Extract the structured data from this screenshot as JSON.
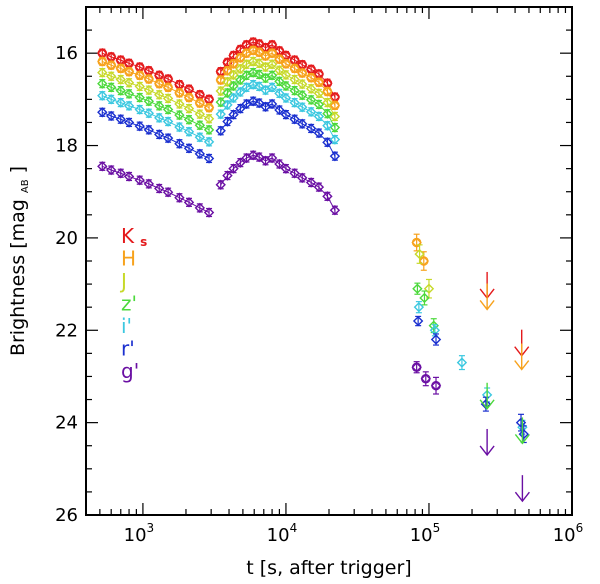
{
  "chart_data": {
    "type": "scatter",
    "title": "",
    "xlabel": "t [s, after trigger]",
    "ylabel_main": "Brightness [mag",
    "ylabel_sub": "AB",
    "ylabel_end": "]",
    "xscale": "log",
    "xlim": [
      400,
      1000000
    ],
    "ylim": [
      26,
      15
    ],
    "x_ticks": [
      {
        "value": 1000,
        "base": "10",
        "exp": "3"
      },
      {
        "value": 10000,
        "base": "10",
        "exp": "4"
      },
      {
        "value": 100000,
        "base": "10",
        "exp": "5"
      },
      {
        "value": 1000000,
        "base": "10",
        "exp": "6"
      }
    ],
    "y_ticks": [
      16,
      18,
      20,
      22,
      24,
      26
    ],
    "legend_position": "middle-left",
    "series": [
      {
        "name": "K",
        "name_sub": "s",
        "color": "#e41a1c",
        "marker": "circle-diamond",
        "offset": 0.0
      },
      {
        "name": "H",
        "name_sub": "",
        "color": "#f7a21c",
        "marker": "circle-diamond",
        "offset": 0.18
      },
      {
        "name": "J",
        "name_sub": "",
        "color": "#c7d92a",
        "marker": "diamond",
        "offset": 0.42
      },
      {
        "name": "z'",
        "name_sub": "",
        "color": "#4cd93c",
        "marker": "diamond",
        "offset": 0.66
      },
      {
        "name": "i'",
        "name_sub": "",
        "color": "#3cc8e0",
        "marker": "diamond",
        "offset": 0.92
      },
      {
        "name": "r'",
        "name_sub": "",
        "color": "#1a2fcf",
        "marker": "diamond",
        "offset": 1.28
      },
      {
        "name": "g'",
        "name_sub": "",
        "color": "#6a0fa3",
        "marker": "diamond",
        "offset": 2.45
      }
    ],
    "early_decay": {
      "t": [
        520,
        600,
        700,
        800,
        950,
        1100,
        1300,
        1500,
        1800,
        2100,
        2500,
        2900
      ],
      "base_mag": [
        16.0,
        16.08,
        16.15,
        16.22,
        16.3,
        16.38,
        16.48,
        16.56,
        16.68,
        16.78,
        16.9,
        17.0
      ]
    },
    "flare": {
      "t": [
        3500,
        3900,
        4300,
        4800,
        5300,
        5900,
        6500,
        7200,
        8000,
        9000,
        10000,
        11500,
        13000,
        15000,
        17000,
        19500,
        22000
      ],
      "base_mag": [
        16.4,
        16.2,
        16.05,
        15.92,
        15.82,
        15.76,
        15.8,
        15.88,
        15.82,
        15.95,
        16.05,
        16.15,
        16.25,
        16.35,
        16.45,
        16.65,
        16.95
      ]
    },
    "late": [
      {
        "band": "H",
        "t": 82000,
        "mag": 20.1,
        "err": 0.18
      },
      {
        "band": "H",
        "t": 92000,
        "mag": 20.5,
        "err": 0.2
      },
      {
        "band": "J",
        "t": 86000,
        "mag": 20.35,
        "err": 0.2
      },
      {
        "band": "J",
        "t": 100000,
        "mag": 21.1,
        "err": 0.2
      },
      {
        "band": "z'",
        "t": 83000,
        "mag": 21.1,
        "err": 0.12
      },
      {
        "band": "z'",
        "t": 93000,
        "mag": 21.3,
        "err": 0.15
      },
      {
        "band": "z'",
        "t": 108000,
        "mag": 21.9,
        "err": 0.15
      },
      {
        "band": "i'",
        "t": 85000,
        "mag": 21.5,
        "err": 0.12
      },
      {
        "band": "i'",
        "t": 110000,
        "mag": 22.0,
        "err": 0.12
      },
      {
        "band": "i'",
        "t": 170000,
        "mag": 22.7,
        "err": 0.15
      },
      {
        "band": "i'",
        "t": 255000,
        "mag": 23.4,
        "err": 0.15
      },
      {
        "band": "i'",
        "t": 450000,
        "mag": 24.1,
        "err": 0.15
      },
      {
        "band": "r'",
        "t": 84000,
        "mag": 21.8,
        "err": 0.1
      },
      {
        "band": "r'",
        "t": 112000,
        "mag": 22.2,
        "err": 0.12
      },
      {
        "band": "r'",
        "t": 250000,
        "mag": 23.6,
        "err": 0.15
      },
      {
        "band": "r'",
        "t": 440000,
        "mag": 24.0,
        "err": 0.18
      },
      {
        "band": "r'",
        "t": 460000,
        "mag": 24.25,
        "err": 0.18
      },
      {
        "band": "g'",
        "t": 82000,
        "mag": 22.8,
        "err": 0.12
      },
      {
        "band": "g'",
        "t": 95000,
        "mag": 23.05,
        "err": 0.15
      },
      {
        "band": "g'",
        "t": 112000,
        "mag": 23.2,
        "err": 0.18
      }
    ],
    "upper_limits": [
      {
        "band": "K",
        "t": 255000,
        "mag": 21.3
      },
      {
        "band": "H",
        "t": 255000,
        "mag": 21.55
      },
      {
        "band": "K",
        "t": 445000,
        "mag": 22.55
      },
      {
        "band": "H",
        "t": 445000,
        "mag": 22.85
      },
      {
        "band": "z'",
        "t": 255000,
        "mag": 23.7
      },
      {
        "band": "z'",
        "t": 450000,
        "mag": 24.45
      },
      {
        "band": "g'",
        "t": 255000,
        "mag": 24.7
      },
      {
        "band": "g'",
        "t": 450000,
        "mag": 25.7
      }
    ]
  }
}
